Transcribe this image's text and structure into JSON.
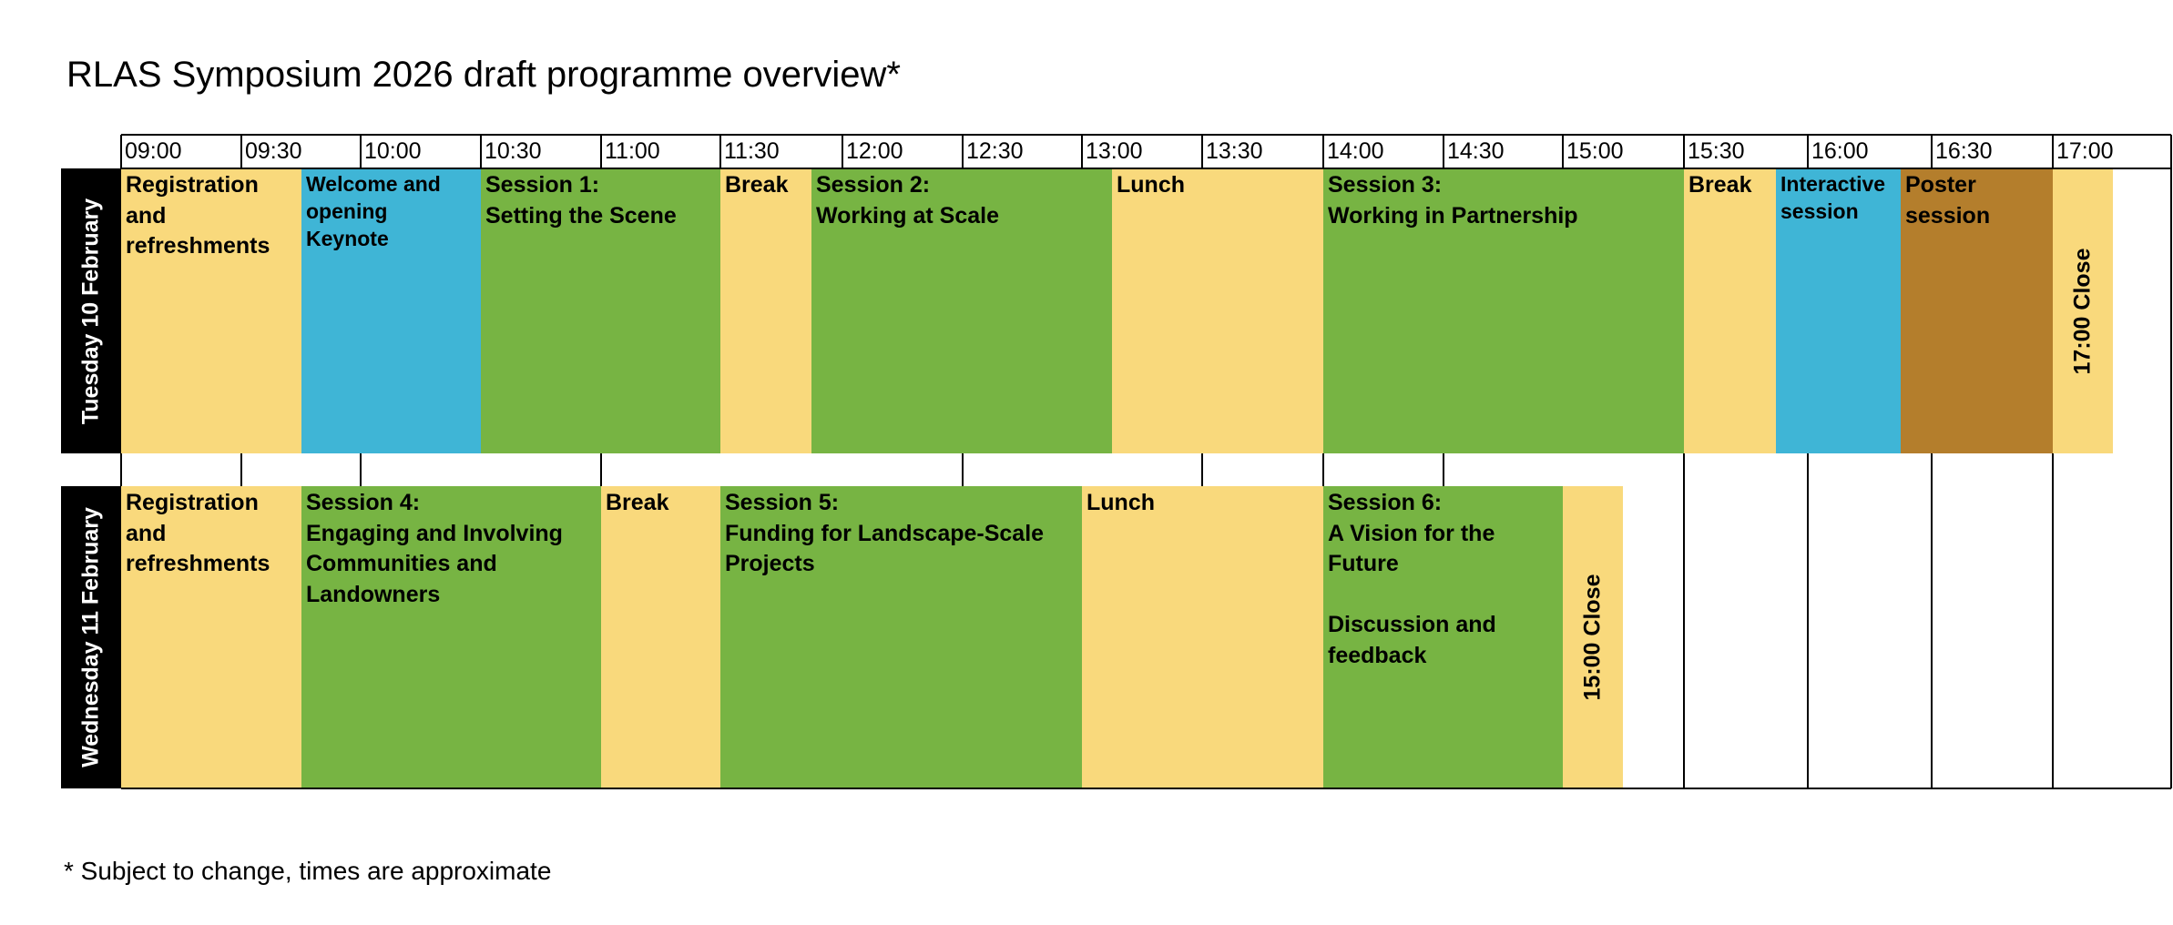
{
  "title": "RLAS Symposium 2026 draft programme overview*",
  "footnote": "* Subject to change, times are approximate",
  "times": [
    "09:00",
    "09:30",
    "10:00",
    "10:30",
    "11:00",
    "11:30",
    "12:00",
    "12:30",
    "13:00",
    "13:30",
    "14:00",
    "14:30",
    "15:00",
    "15:30",
    "16:00",
    "16:30",
    "17:00"
  ],
  "days": [
    {
      "label": "Tuesday 10 February",
      "blocks": [
        {
          "label": "Registration\nand\nrefreshments",
          "color": "#f9d97c"
        },
        {
          "label": "Welcome and\nopening\nKeynote",
          "color": "#3fb5d6"
        },
        {
          "label": "Session 1:\nSetting the Scene",
          "color": "#77b443"
        },
        {
          "label": "Break",
          "color": "#f9d97c"
        },
        {
          "label": "Session 2:\nWorking at Scale",
          "color": "#77b443"
        },
        {
          "label": "Lunch",
          "color": "#f9d97c"
        },
        {
          "label": "Session 3:\nWorking in Partnership",
          "color": "#77b443"
        },
        {
          "label": "Break",
          "color": "#f9d97c"
        },
        {
          "label": "Interactive\nsession",
          "color": "#3fb5d6"
        },
        {
          "label": "Poster\nsession",
          "color": "#b47e2c"
        },
        {
          "label": "17:00 Close",
          "color": "#f9d97c"
        }
      ]
    },
    {
      "label": "Wednesday 11 February",
      "blocks": [
        {
          "label": "Registration\nand\nrefreshments",
          "color": "#f9d97c"
        },
        {
          "label": "Session 4:\nEngaging and Involving\nCommunities and\nLandowners",
          "color": "#77b443"
        },
        {
          "label": "Break",
          "color": "#f9d97c"
        },
        {
          "label": "Session 5:\nFunding for Landscape-Scale\nProjects",
          "color": "#77b443"
        },
        {
          "label": "Lunch",
          "color": "#f9d97c"
        },
        {
          "label": "Session 6:\nA Vision for the\nFuture\n\nDiscussion and\nfeedback",
          "color": "#77b443"
        },
        {
          "label": "15:00 Close",
          "color": "#f9d97c"
        }
      ]
    }
  ]
}
